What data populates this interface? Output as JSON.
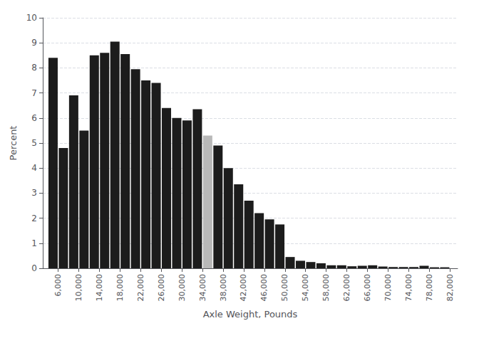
{
  "chart_data": {
    "type": "bar",
    "xlabel": "Axle Weight, Pounds",
    "ylabel": "Percent",
    "x": [
      5000,
      7000,
      9000,
      11000,
      13000,
      15000,
      17000,
      19000,
      21000,
      23000,
      25000,
      27000,
      29000,
      31000,
      33000,
      35000,
      37000,
      39000,
      41000,
      43000,
      45000,
      47000,
      49000,
      51000,
      53000,
      55000,
      57000,
      59000,
      61000,
      63000,
      65000,
      67000,
      69000,
      71000,
      73000,
      75000,
      77000,
      79000,
      81000
    ],
    "values": [
      8.4,
      4.8,
      6.9,
      5.5,
      8.5,
      8.6,
      9.05,
      8.55,
      7.95,
      7.5,
      7.4,
      6.4,
      6.0,
      5.9,
      6.35,
      5.3,
      4.9,
      4.0,
      3.35,
      2.7,
      2.2,
      1.95,
      1.75,
      0.45,
      0.3,
      0.25,
      0.2,
      0.12,
      0.12,
      0.08,
      0.1,
      0.12,
      0.07,
      0.05,
      0.05,
      0.05,
      0.1,
      0.04,
      0.04
    ],
    "colors": [
      "#1c1c1c",
      "#1c1c1c",
      "#1c1c1c",
      "#1c1c1c",
      "#1c1c1c",
      "#1c1c1c",
      "#1c1c1c",
      "#1c1c1c",
      "#1c1c1c",
      "#1c1c1c",
      "#1c1c1c",
      "#1c1c1c",
      "#1c1c1c",
      "#1c1c1c",
      "#1c1c1c",
      "#b8b8b8",
      "#1c1c1c",
      "#1c1c1c",
      "#1c1c1c",
      "#1c1c1c",
      "#1c1c1c",
      "#1c1c1c",
      "#1c1c1c",
      "#1c1c1c",
      "#1c1c1c",
      "#1c1c1c",
      "#1c1c1c",
      "#1c1c1c",
      "#1c1c1c",
      "#1c1c1c",
      "#1c1c1c",
      "#1c1c1c",
      "#1c1c1c",
      "#1c1c1c",
      "#1c1c1c",
      "#1c1c1c",
      "#1c1c1c",
      "#1c1c1c",
      "#1c1c1c"
    ],
    "xlim": [
      3000,
      83500
    ],
    "xticks": [
      {
        "value": 6000,
        "label": "6,000"
      },
      {
        "value": 10000,
        "label": "10,000"
      },
      {
        "value": 14000,
        "label": "14,000"
      },
      {
        "value": 18000,
        "label": "18,000"
      },
      {
        "value": 22000,
        "label": "22,000"
      },
      {
        "value": 26000,
        "label": "26,000"
      },
      {
        "value": 30000,
        "label": "30,000"
      },
      {
        "value": 34000,
        "label": "34,000"
      },
      {
        "value": 38000,
        "label": "38,000"
      },
      {
        "value": 42000,
        "label": "42,000"
      },
      {
        "value": 46000,
        "label": "46,000"
      },
      {
        "value": 50000,
        "label": "50,000"
      },
      {
        "value": 54000,
        "label": "54,000"
      },
      {
        "value": 58000,
        "label": "58,000"
      },
      {
        "value": 62000,
        "label": "62,000"
      },
      {
        "value": 66000,
        "label": "66,000"
      },
      {
        "value": 70000,
        "label": "70,000"
      },
      {
        "value": 74000,
        "label": "74,000"
      },
      {
        "value": 78000,
        "label": "78,000"
      },
      {
        "value": 82000,
        "label": "82,000"
      }
    ],
    "ylim": [
      0,
      10
    ],
    "yticks": [
      0,
      1,
      2,
      3,
      4,
      5,
      6,
      7,
      8,
      9,
      10
    ],
    "grid": true
  }
}
